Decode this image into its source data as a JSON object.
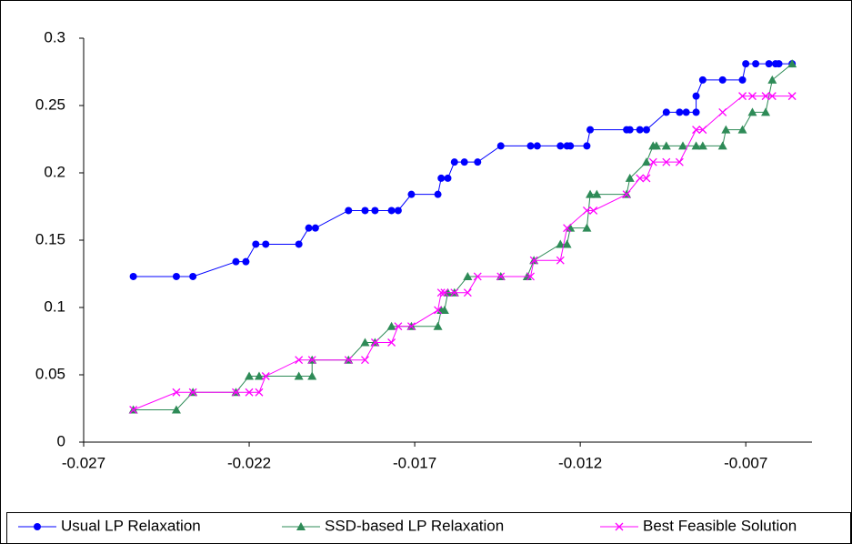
{
  "chart_data": {
    "type": "line",
    "xlim": [
      -0.027,
      -0.005
    ],
    "xticks": [
      -0.027,
      -0.022,
      -0.017,
      -0.012,
      -0.007
    ],
    "ylim": [
      0,
      0.3
    ],
    "yticks": [
      0,
      0.05,
      0.1,
      0.15,
      0.2,
      0.25,
      0.3
    ],
    "grid": false,
    "legend": "bottom",
    "series": [
      {
        "name": "Usual LP Relaxation",
        "color": "#0000ff",
        "marker": "circle",
        "x": [
          -0.0255,
          -0.0242,
          -0.0237,
          -0.0224,
          -0.0221,
          -0.0218,
          -0.0215,
          -0.0205,
          -0.0202,
          -0.02,
          -0.019,
          -0.0185,
          -0.0182,
          -0.0177,
          -0.0175,
          -0.0171,
          -0.0163,
          -0.0162,
          -0.016,
          -0.0158,
          -0.0155,
          -0.0151,
          -0.0144,
          -0.0135,
          -0.0133,
          -0.0126,
          -0.0124,
          -0.0123,
          -0.0118,
          -0.0117,
          -0.0106,
          -0.0105,
          -0.0102,
          -0.01,
          -0.0094,
          -0.009,
          -0.0088,
          -0.0085,
          -0.0085,
          -0.0083,
          -0.0077,
          -0.0071,
          -0.007,
          -0.0067,
          -0.0063,
          -0.0061,
          -0.006,
          -0.0056
        ],
        "values": [
          0.123,
          0.123,
          0.123,
          0.134,
          0.134,
          0.147,
          0.147,
          0.147,
          0.159,
          0.159,
          0.172,
          0.172,
          0.172,
          0.172,
          0.172,
          0.184,
          0.184,
          0.196,
          0.196,
          0.208,
          0.208,
          0.208,
          0.22,
          0.22,
          0.22,
          0.22,
          0.22,
          0.22,
          0.22,
          0.232,
          0.232,
          0.232,
          0.232,
          0.232,
          0.245,
          0.245,
          0.245,
          0.245,
          0.257,
          0.269,
          0.269,
          0.269,
          0.281,
          0.281,
          0.281,
          0.281,
          0.281,
          0.281
        ]
      },
      {
        "name": "SSD-based LP Relaxation",
        "color": "#2e8b57",
        "marker": "triangle",
        "x": [
          -0.0255,
          -0.0242,
          -0.0237,
          -0.0224,
          -0.022,
          -0.0217,
          -0.0205,
          -0.0201,
          -0.0201,
          -0.019,
          -0.0185,
          -0.0182,
          -0.0177,
          -0.0171,
          -0.0163,
          -0.0162,
          -0.0161,
          -0.016,
          -0.0158,
          -0.0154,
          -0.0144,
          -0.0136,
          -0.0134,
          -0.0126,
          -0.0124,
          -0.0123,
          -0.0118,
          -0.0117,
          -0.0115,
          -0.0106,
          -0.0105,
          -0.01,
          -0.0098,
          -0.0097,
          -0.0094,
          -0.0089,
          -0.0085,
          -0.0083,
          -0.0077,
          -0.0076,
          -0.0071,
          -0.0068,
          -0.0064,
          -0.0062,
          -0.0056
        ],
        "values": [
          0.024,
          0.024,
          0.037,
          0.037,
          0.049,
          0.049,
          0.049,
          0.049,
          0.061,
          0.061,
          0.074,
          0.074,
          0.086,
          0.086,
          0.086,
          0.098,
          0.098,
          0.111,
          0.111,
          0.123,
          0.123,
          0.123,
          0.135,
          0.147,
          0.147,
          0.159,
          0.159,
          0.184,
          0.184,
          0.184,
          0.196,
          0.208,
          0.22,
          0.22,
          0.22,
          0.22,
          0.22,
          0.22,
          0.22,
          0.232,
          0.232,
          0.245,
          0.245,
          0.269,
          0.281
        ]
      },
      {
        "name": "Best Feasible Solution",
        "color": "#ff00ff",
        "marker": "x",
        "x": [
          -0.0255,
          -0.0242,
          -0.0237,
          -0.0224,
          -0.022,
          -0.0217,
          -0.0215,
          -0.0205,
          -0.0201,
          -0.019,
          -0.0185,
          -0.0182,
          -0.0177,
          -0.0175,
          -0.0171,
          -0.0163,
          -0.0162,
          -0.0161,
          -0.0158,
          -0.0154,
          -0.0151,
          -0.0144,
          -0.0135,
          -0.0134,
          -0.0126,
          -0.0124,
          -0.0118,
          -0.0116,
          -0.0106,
          -0.0102,
          -0.01,
          -0.0098,
          -0.0094,
          -0.009,
          -0.0085,
          -0.0083,
          -0.0077,
          -0.0071,
          -0.0068,
          -0.0064,
          -0.0062,
          -0.0056
        ],
        "values": [
          0.024,
          0.037,
          0.037,
          0.037,
          0.037,
          0.037,
          0.049,
          0.061,
          0.061,
          0.061,
          0.061,
          0.074,
          0.074,
          0.086,
          0.086,
          0.098,
          0.111,
          0.111,
          0.111,
          0.111,
          0.123,
          0.123,
          0.123,
          0.135,
          0.135,
          0.159,
          0.172,
          0.172,
          0.184,
          0.196,
          0.196,
          0.208,
          0.208,
          0.208,
          0.232,
          0.232,
          0.245,
          0.257,
          0.257,
          0.257,
          0.257,
          0.257
        ]
      }
    ]
  }
}
